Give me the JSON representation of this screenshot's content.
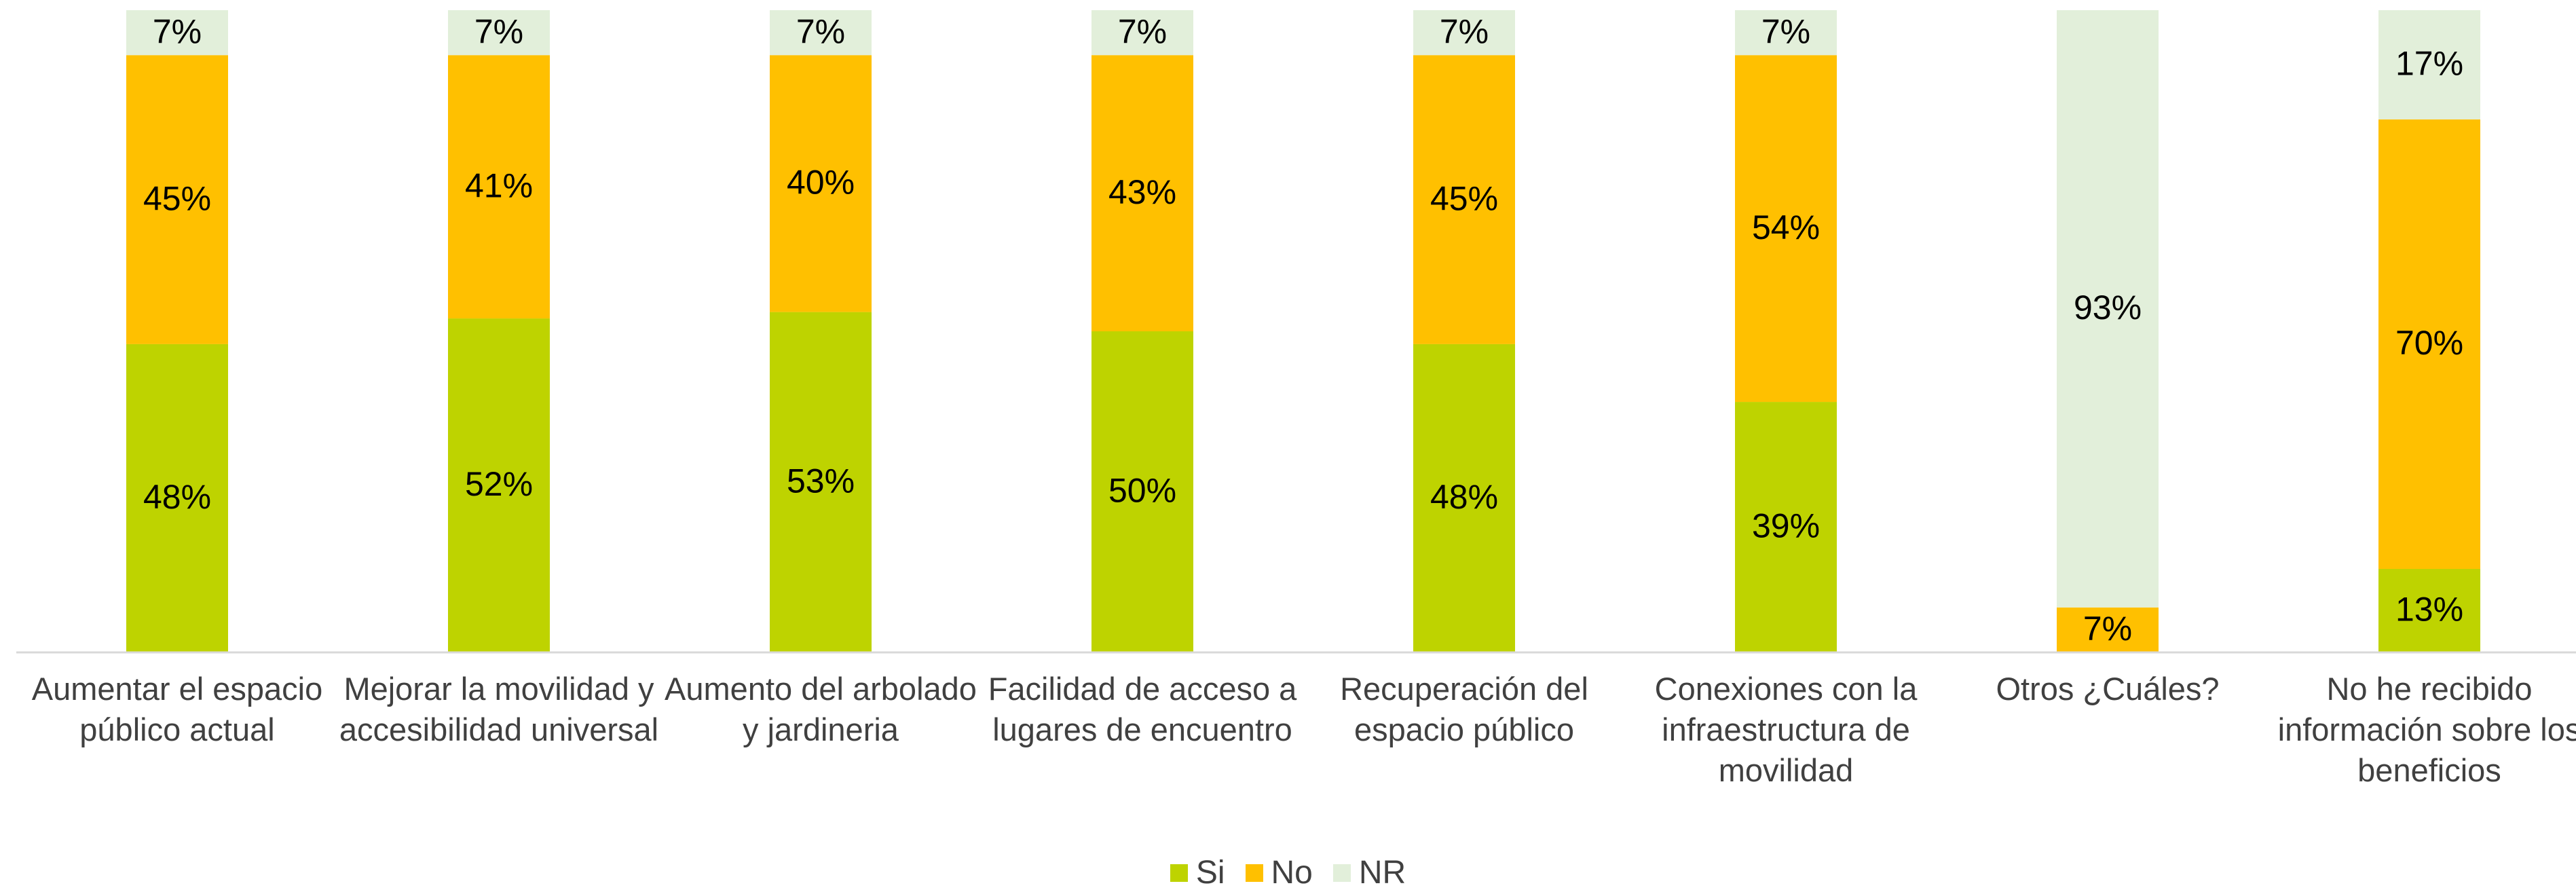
{
  "chart_data": {
    "type": "stacked_bar",
    "categories": [
      "Aumentar el espacio público actual",
      "Mejorar la movilidad y accesibilidad universal",
      "Aumento del arbolado y jardineria",
      "Facilidad de acceso a lugares de encuentro",
      "Recuperación del espacio público",
      "Conexiones con la infraestructura de movilidad",
      "Otros ¿Cuáles?",
      "No he recibido información sobre los beneficios"
    ],
    "series": [
      {
        "name": "Si",
        "color": "#bed300",
        "values": [
          48,
          52,
          53,
          50,
          48,
          39,
          null,
          13
        ],
        "value_labels": [
          "48%",
          "52%",
          "53%",
          "50%",
          "48%",
          "39%",
          null,
          "13%"
        ]
      },
      {
        "name": "No",
        "color": "#ffc000",
        "values": [
          45,
          41,
          40,
          43,
          45,
          54,
          7,
          70
        ],
        "value_labels": [
          "45%",
          "41%",
          "40%",
          "43%",
          "45%",
          "54%",
          "7%",
          "70%"
        ]
      },
      {
        "name": "NR",
        "color": "#e2efda",
        "values": [
          7,
          7,
          7,
          7,
          7,
          7,
          93,
          17
        ],
        "value_labels": [
          "7%",
          "7%",
          "7%",
          "7%",
          "7%",
          "7%",
          "93%",
          "17%"
        ]
      }
    ],
    "ylim": [
      0,
      100
    ],
    "legend": "bottom"
  }
}
